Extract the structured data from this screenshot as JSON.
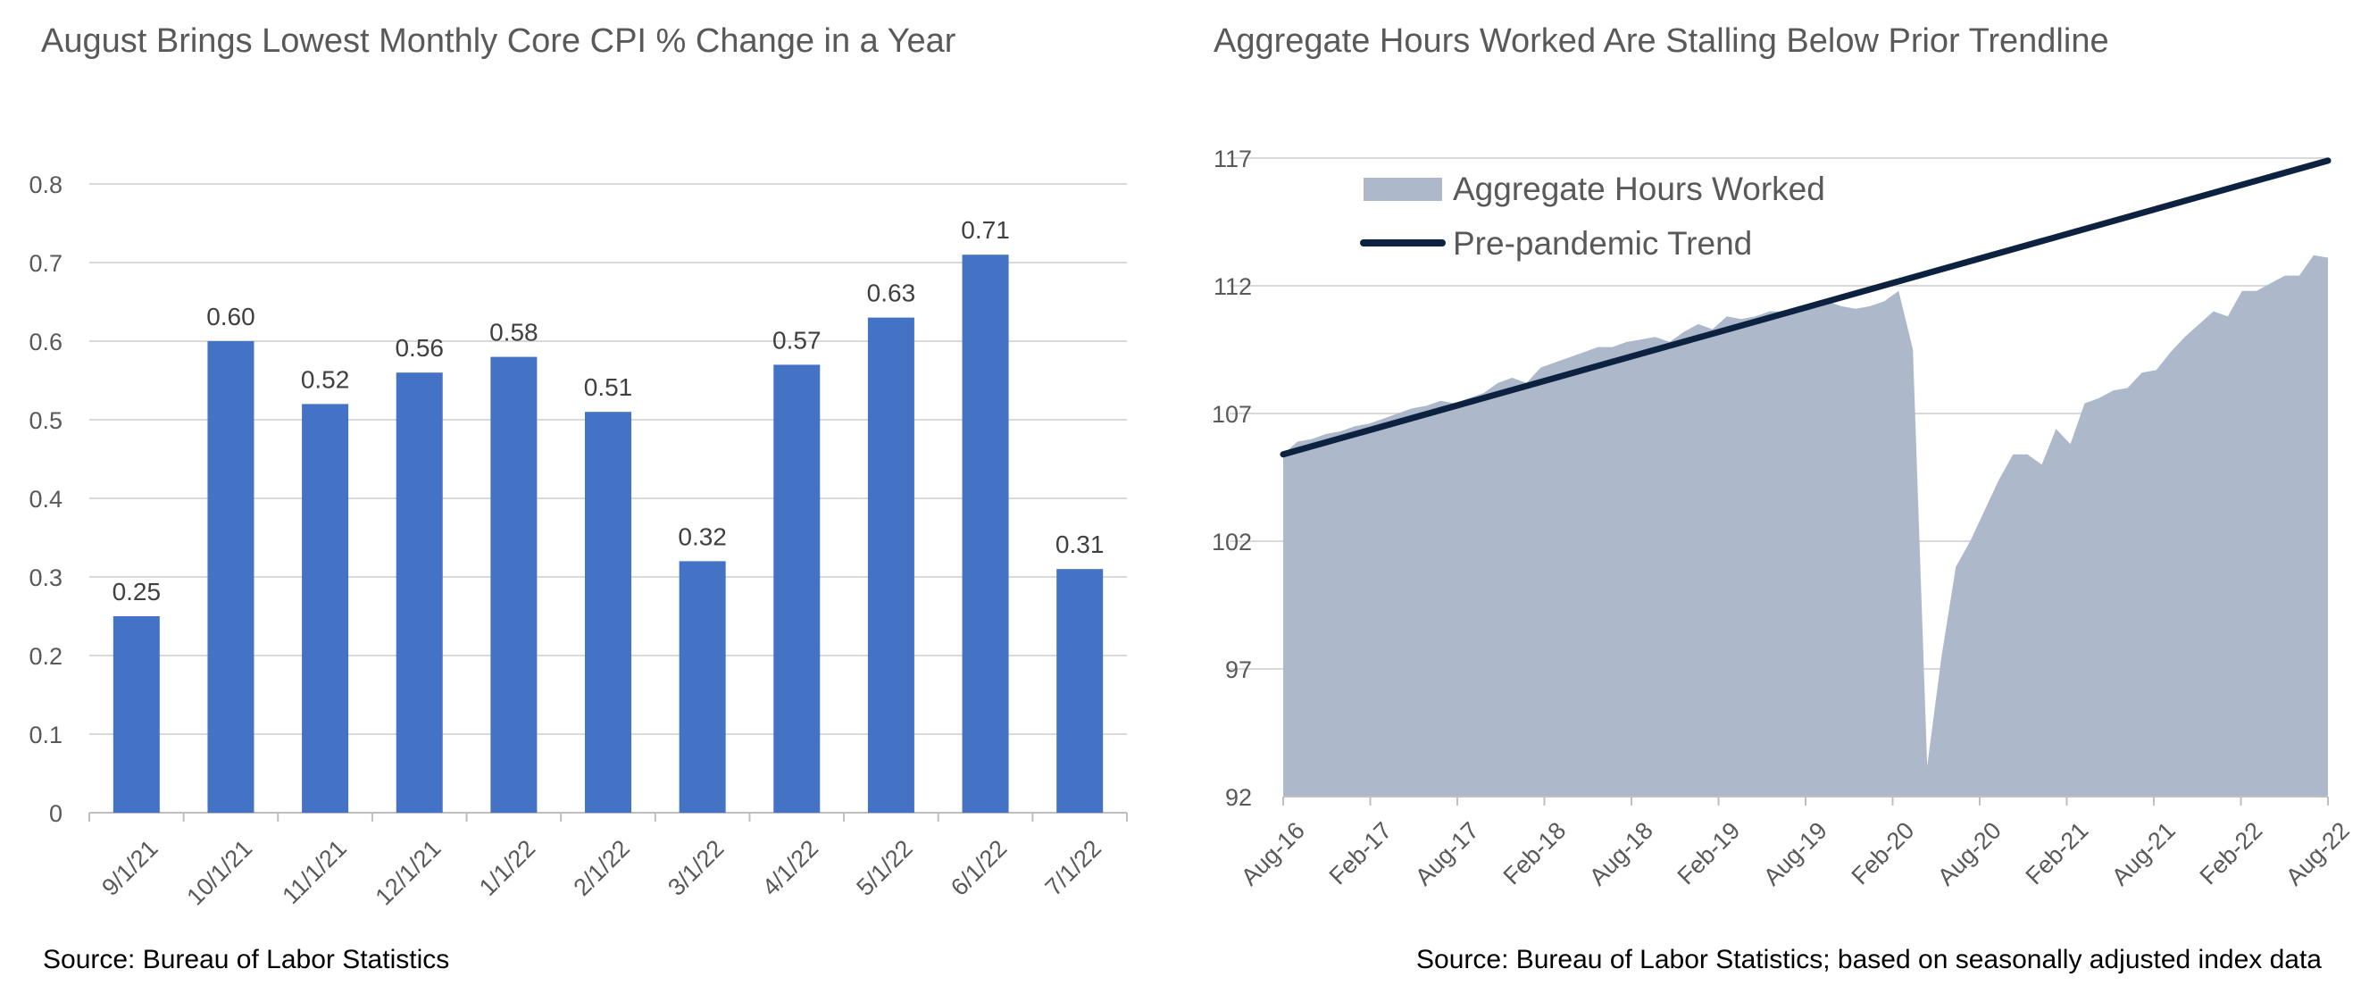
{
  "charts": {
    "left": {
      "title": "August Brings Lowest Monthly Core CPI % Change in a Year",
      "source": "Source:  Bureau of Labor Statistics"
    },
    "right": {
      "title": "Aggregate Hours Worked Are Stalling Below Prior Trendline",
      "source": "Source:  Bureau of Labor Statistics; based on seasonally adjusted index data"
    }
  },
  "colors": {
    "bar": "#4472C4",
    "area": "#ADB9CA",
    "trend": "#0D2240",
    "grid": "#D9D9D9",
    "text": "#595959"
  },
  "chart_data": [
    {
      "type": "bar",
      "title": "August Brings Lowest Monthly Core CPI % Change in a Year",
      "categories": [
        "9/1/21",
        "10/1/21",
        "11/1/21",
        "12/1/21",
        "1/1/22",
        "2/1/22",
        "3/1/22",
        "4/1/22",
        "5/1/22",
        "6/1/22",
        "7/1/22"
      ],
      "values": [
        0.25,
        0.6,
        0.52,
        0.56,
        0.58,
        0.51,
        0.32,
        0.57,
        0.63,
        0.71,
        0.31
      ],
      "data_labels": [
        "0.25",
        "0.60",
        "0.52",
        "0.56",
        "0.58",
        "0.51",
        "0.32",
        "0.57",
        "0.63",
        "0.71",
        "0.31"
      ],
      "yticks": [
        "0",
        "0.1",
        "0.2",
        "0.3",
        "0.4",
        "0.5",
        "0.6",
        "0.7",
        "0.8"
      ],
      "ylim": [
        0,
        0.8
      ],
      "grid": true
    },
    {
      "type": "area",
      "title": "Aggregate Hours Worked Are Stalling Below Prior Trendline",
      "x_start": "Aug-16",
      "x_end": "Aug-22",
      "xticks": [
        "Aug-16",
        "Feb-17",
        "Aug-17",
        "Feb-18",
        "Aug-18",
        "Feb-19",
        "Aug-19",
        "Feb-20",
        "Aug-20",
        "Feb-21",
        "Aug-21",
        "Feb-22",
        "Aug-22"
      ],
      "yticks": [
        "92",
        "97",
        "102",
        "107",
        "112",
        "117"
      ],
      "ylim": [
        92,
        117
      ],
      "grid": true,
      "legend_position": "top-left",
      "series": [
        {
          "name": "Aggregate Hours Worked",
          "style": "area",
          "values": [
            105.4,
            105.9,
            106.0,
            106.2,
            106.3,
            106.5,
            106.6,
            106.8,
            107.0,
            107.2,
            107.3,
            107.5,
            107.4,
            107.6,
            107.8,
            108.2,
            108.4,
            108.2,
            108.8,
            109.0,
            109.2,
            109.4,
            109.6,
            109.6,
            109.8,
            109.9,
            110.0,
            109.8,
            110.2,
            110.5,
            110.3,
            110.8,
            110.7,
            110.8,
            111.0,
            111.0,
            111.2,
            111.2,
            111.4,
            111.2,
            111.1,
            111.2,
            111.4,
            111.8,
            109.5,
            93.2,
            97.5,
            101.0,
            102.0,
            103.2,
            104.4,
            105.4,
            105.4,
            105.0,
            106.4,
            105.8,
            107.4,
            107.6,
            107.9,
            108.0,
            108.6,
            108.7,
            109.4,
            110.0,
            110.5,
            111.0,
            110.8,
            111.8,
            111.8,
            112.1,
            112.4,
            112.4,
            113.2,
            113.1
          ]
        },
        {
          "name": "Pre-pandemic Trend",
          "style": "line",
          "start": 105.4,
          "end": 116.9
        }
      ]
    }
  ]
}
